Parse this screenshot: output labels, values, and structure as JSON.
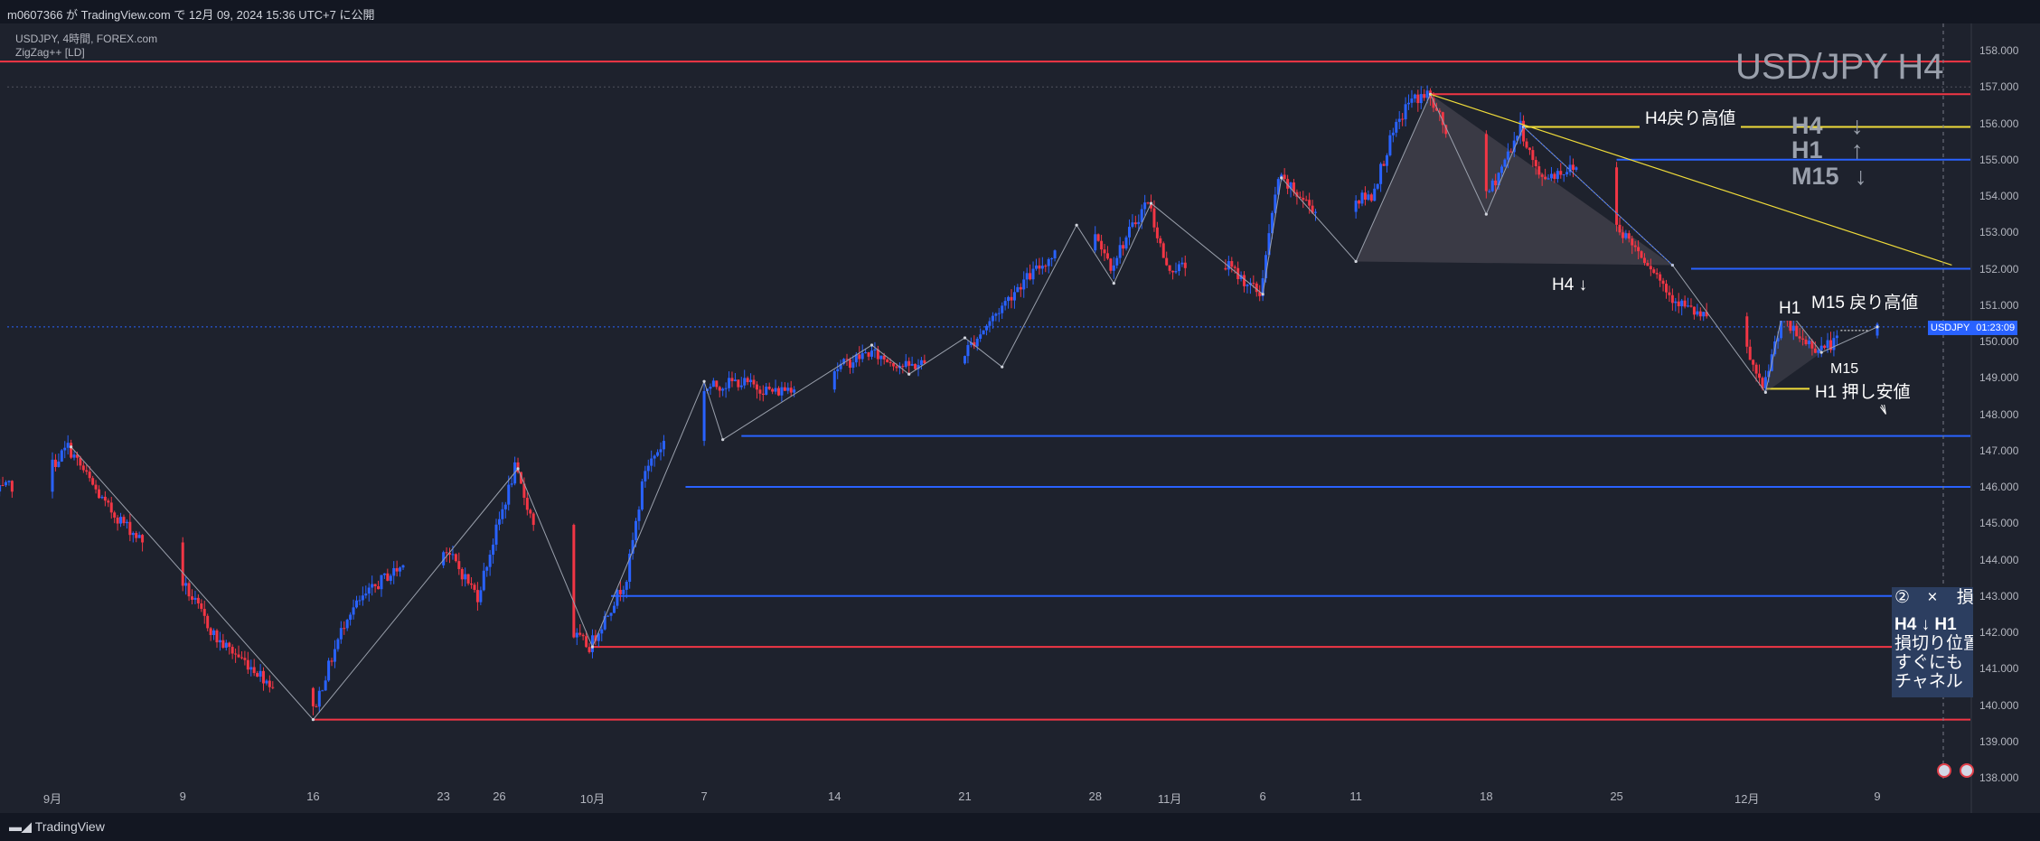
{
  "publish_line": "m0607366 が TradingView.com で 12月 09, 2024 15:36 UTC+7 に公開",
  "legend": {
    "symbol_line": "USDJPY, 4時間, FOREX.com",
    "indicator_line": "ZigZag++ [LD]"
  },
  "big_title": "USD/JPY H4",
  "trend_panel": [
    {
      "tf": "H4",
      "arrow": "↓"
    },
    {
      "tf": "H1",
      "arrow": "↑"
    },
    {
      "tf": "M15",
      "arrow": "↓"
    }
  ],
  "tags": {
    "h4_pullback_high": "H4戻り高値",
    "h4_down": "H4 ↓",
    "m15_pullback_high": "M15 戻り高値",
    "h1": "H1",
    "m15": "M15",
    "h1_pushback_low": "H1 押し安値"
  },
  "price_badge": {
    "symbol": "USDJPY",
    "price": "150.363",
    "countdown": "01:23:09"
  },
  "note_box": {
    "header_num": "②",
    "header_close": "×",
    "header_text": "損",
    "lines": [
      "H4 ↓ H1",
      "損切り位置",
      "すぐにも",
      "チャネル"
    ]
  },
  "footer_logo": "TradingView",
  "colors": {
    "background": "#1e222d",
    "bull_candle": "#2962ff",
    "bear_candle": "#f23645",
    "blue_level": "#2962ff",
    "red_level": "#f23645",
    "yellow_level": "#f0dc3a",
    "zigzag": "#9aa0ac"
  },
  "chart_data": {
    "type": "candlestick",
    "symbol": "USDJPY",
    "timeframe": "4時間",
    "ylim": [
      138.0,
      158.0
    ],
    "y_ticks": [
      "138.000",
      "139.000",
      "140.000",
      "141.000",
      "142.000",
      "143.000",
      "144.000",
      "145.000",
      "146.000",
      "147.000",
      "148.000",
      "149.000",
      "150.000",
      "151.000",
      "152.000",
      "153.000",
      "154.000",
      "155.000",
      "156.000",
      "157.000",
      "158.000"
    ],
    "x_ticks": [
      "9月",
      "9",
      "16",
      "23",
      "26",
      "10月",
      "7",
      "14",
      "21",
      "28",
      "11月",
      "6",
      "11",
      "18",
      "25",
      "12月",
      "9"
    ],
    "x_tick_dates": [
      "2024-09-02",
      "2024-09-09",
      "2024-09-16",
      "2024-09-23",
      "2024-09-26",
      "2024-10-01",
      "2024-10-07",
      "2024-10-14",
      "2024-10-21",
      "2024-10-28",
      "2024-11-01",
      "2024-11-06",
      "2024-11-11",
      "2024-11-18",
      "2024-11-25",
      "2024-12-02",
      "2024-12-09"
    ],
    "price_path": [
      [
        "2024-08-30",
        145.8
      ],
      [
        "2024-09-02",
        146.5
      ],
      [
        "2024-09-03",
        147.1
      ],
      [
        "2024-09-05",
        145.5
      ],
      [
        "2024-09-09",
        143.5
      ],
      [
        "2024-09-11",
        141.8
      ],
      [
        "2024-09-13",
        141.0
      ],
      [
        "2024-09-16",
        139.6
      ],
      [
        "2024-09-18",
        142.5
      ],
      [
        "2024-09-20",
        143.5
      ],
      [
        "2024-09-23",
        144.5
      ],
      [
        "2024-09-25",
        143.0
      ],
      [
        "2024-09-26",
        144.8
      ],
      [
        "2024-09-27",
        146.5
      ],
      [
        "2024-09-30",
        142.0
      ],
      [
        "2024-10-01",
        141.6
      ],
      [
        "2024-10-03",
        143.5
      ],
      [
        "2024-10-04",
        146.5
      ],
      [
        "2024-10-07",
        148.7
      ],
      [
        "2024-10-09",
        148.9
      ],
      [
        "2024-10-11",
        148.6
      ],
      [
        "2024-10-14",
        149.2
      ],
      [
        "2024-10-16",
        149.7
      ],
      [
        "2024-10-18",
        149.3
      ],
      [
        "2024-10-21",
        149.6
      ],
      [
        "2024-10-24",
        151.5
      ],
      [
        "2024-10-27",
        152.9
      ],
      [
        "2024-10-28",
        153.2
      ],
      [
        "2024-10-29",
        152.1
      ],
      [
        "2024-10-31",
        153.9
      ],
      [
        "2024-11-01",
        152.0
      ],
      [
        "2024-11-04",
        152.2
      ],
      [
        "2024-11-06",
        151.3
      ],
      [
        "2024-11-07",
        154.5
      ],
      [
        "2024-11-09",
        153.6
      ],
      [
        "2024-11-12",
        154.0
      ],
      [
        "2024-11-13",
        155.5
      ],
      [
        "2024-11-14",
        156.6
      ],
      [
        "2024-11-15",
        156.8
      ],
      [
        "2024-11-18",
        153.8
      ],
      [
        "2024-11-19",
        154.8
      ],
      [
        "2024-11-20",
        155.9
      ],
      [
        "2024-11-21",
        154.5
      ],
      [
        "2024-11-23",
        154.8
      ],
      [
        "2024-11-25",
        153.3
      ],
      [
        "2024-11-27",
        152.1
      ],
      [
        "2024-11-28",
        151.3
      ],
      [
        "2024-11-29",
        150.9
      ],
      [
        "2024-12-02",
        150.0
      ],
      [
        "2024-12-03",
        148.6
      ],
      [
        "2024-12-04",
        150.6
      ],
      [
        "2024-12-05",
        150.1
      ],
      [
        "2024-12-06",
        149.8
      ],
      [
        "2024-12-09",
        150.4
      ]
    ],
    "zigzag_points": [
      [
        "2024-09-03",
        147.1
      ],
      [
        "2024-09-16",
        139.6
      ],
      [
        "2024-09-27",
        146.5
      ],
      [
        "2024-10-01",
        141.6
      ],
      [
        "2024-10-07",
        148.9
      ],
      [
        "2024-10-08",
        147.3
      ],
      [
        "2024-10-16",
        149.9
      ],
      [
        "2024-10-18",
        149.1
      ],
      [
        "2024-10-21",
        150.1
      ],
      [
        "2024-10-23",
        149.3
      ],
      [
        "2024-10-27",
        153.2
      ],
      [
        "2024-10-29",
        151.6
      ],
      [
        "2024-10-31",
        153.8
      ],
      [
        "2024-11-06",
        151.3
      ],
      [
        "2024-11-07",
        154.5
      ],
      [
        "2024-11-11",
        152.2
      ],
      [
        "2024-11-15",
        156.8
      ],
      [
        "2024-11-18",
        153.5
      ],
      [
        "2024-11-20",
        155.9
      ],
      [
        "2024-11-28",
        152.1
      ],
      [
        "2024-12-03",
        148.6
      ],
      [
        "2024-12-04",
        151.0
      ],
      [
        "2024-12-06",
        149.7
      ],
      [
        "2024-12-09",
        150.4
      ]
    ],
    "levels": [
      {
        "price": 157.7,
        "color": "red",
        "from": "2024-08-30"
      },
      {
        "price": 156.8,
        "color": "red",
        "from": "2024-11-15"
      },
      {
        "price": 155.9,
        "color": "yellow",
        "from": "2024-11-20"
      },
      {
        "price": 155.0,
        "color": "blue",
        "from": "2024-11-25"
      },
      {
        "price": 152.0,
        "color": "blue",
        "from": "2024-11-29"
      },
      {
        "price": 148.7,
        "color": "yellow",
        "from": "2024-12-03",
        "to": "2024-12-06"
      },
      {
        "price": 147.4,
        "color": "blue",
        "from": "2024-10-09"
      },
      {
        "price": 146.0,
        "color": "blue",
        "from": "2024-10-06"
      },
      {
        "price": 143.0,
        "color": "blue",
        "from": "2024-10-02"
      },
      {
        "price": 141.6,
        "color": "red",
        "from": "2024-10-01"
      },
      {
        "price": 139.6,
        "color": "red",
        "from": "2024-09-16"
      }
    ],
    "trendline": [
      [
        "2024-11-15",
        156.8
      ],
      [
        "2024-12-13",
        152.1
      ]
    ],
    "last_price": 150.363
  }
}
